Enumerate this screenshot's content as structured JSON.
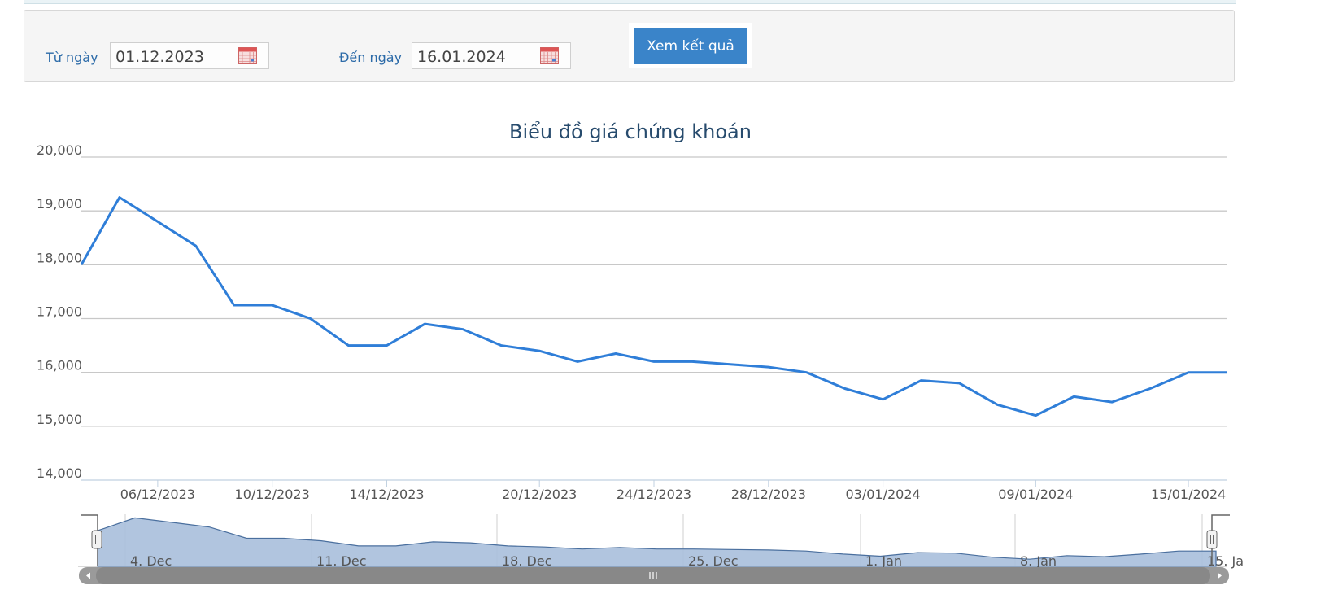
{
  "filter": {
    "from_label": "Từ ngày",
    "from_value": "01.12.2023",
    "to_label": "Đến ngày",
    "to_value": "16.01.2024",
    "submit_label": "Xem kết quả"
  },
  "colors": {
    "line": "#2f7ed8",
    "navigator_fill": "#a8bfdc",
    "navigator_line": "#4a6f9e",
    "scrollbar": "#888888"
  },
  "chart_data": {
    "type": "line",
    "title": "Biểu đồ giá chứng khoán",
    "ylim": [
      14000,
      20000
    ],
    "y_ticks": [
      "14,000",
      "15,000",
      "16,000",
      "17,000",
      "18,000",
      "19,000",
      "20,000"
    ],
    "x_ticks": [
      "06/12/2023",
      "10/12/2023",
      "14/12/2023",
      "20/12/2023",
      "24/12/2023",
      "28/12/2023",
      "03/01/2024",
      "09/01/2024",
      "15/01/2024"
    ],
    "navigator_ticks": [
      "4. Dec",
      "11. Dec",
      "18. Dec",
      "25. Dec",
      "1. Jan",
      "8. Jan",
      "15. Ja"
    ],
    "grid": true,
    "series": [
      {
        "values": [
          18000,
          19250,
          18800,
          18350,
          17250,
          17250,
          17000,
          16500,
          16500,
          16900,
          16800,
          16500,
          16400,
          16200,
          16350,
          16200,
          16200,
          16150,
          16100,
          16000,
          15700,
          15500,
          15850,
          15800,
          15400,
          15200,
          15550,
          15450,
          15700,
          16000,
          16000
        ]
      }
    ]
  }
}
